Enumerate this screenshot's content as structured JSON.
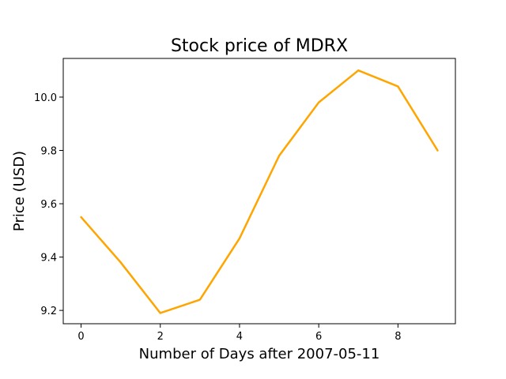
{
  "chart_data": {
    "type": "line",
    "title": "Stock price of MDRX",
    "xlabel": "Number of Days after 2007-05-11",
    "ylabel": "Price (USD)",
    "x": [
      0,
      1,
      2,
      3,
      4,
      5,
      6,
      7,
      8,
      9
    ],
    "series": [
      {
        "values": [
          9.55,
          9.38,
          9.19,
          9.24,
          9.47,
          9.78,
          9.98,
          10.1,
          10.04,
          9.8
        ],
        "color": "#FFA500"
      }
    ],
    "xlim": [
      -0.45,
      9.45
    ],
    "ylim": [
      9.15,
      10.145
    ],
    "xticks": [
      0,
      2,
      4,
      6,
      8
    ],
    "xtick_labels": [
      "0",
      "2",
      "4",
      "6",
      "8"
    ],
    "yticks": [
      9.2,
      9.4,
      9.6,
      9.8,
      10.0
    ],
    "ytick_labels": [
      "9.2",
      "9.4",
      "9.6",
      "9.8",
      "10.0"
    ],
    "grid": false,
    "legend": "none"
  }
}
